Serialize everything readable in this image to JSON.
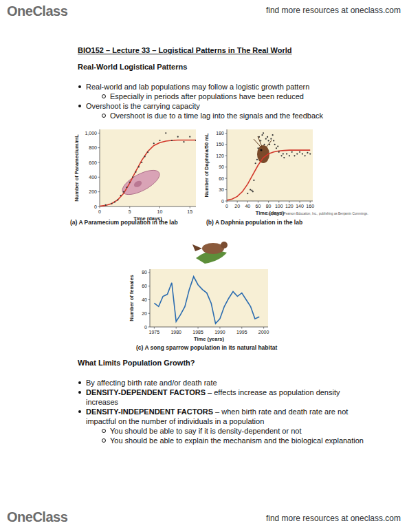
{
  "header": {
    "logo": "OneClass",
    "link": "find more resources at oneclass.com"
  },
  "title": "BIO152 – Lecture 33 – Logistical Patterns in The Real World",
  "sections": [
    {
      "heading": "Real-World Logistical Patterns",
      "bullets": [
        {
          "text": "Real-world and lab populations may follow a logistic growth pattern",
          "sub": [
            "Especially in periods after populations have been reduced"
          ]
        },
        {
          "text": "Overshoot is the carrying capacity",
          "sub": [
            "Overshoot is due to a time lag into the signals and the feedback"
          ]
        }
      ]
    },
    {
      "heading": "What Limits Population Growth?",
      "bullets": [
        {
          "text": "By affecting birth rate and/or death rate"
        },
        {
          "term": "DENSITY-DEPENDENT FACTORS",
          "text": "– effects increase as population density increases"
        },
        {
          "term": "DENSITY-INDEPENDENT FACTORS",
          "text": "– when birth rate and death rate are not impactful on the number of individuals in a population",
          "sub": [
            "You should be able to say if it is density-dependent or not",
            "You should be able to explain the mechanism and the biological explanation"
          ]
        }
      ]
    }
  ],
  "chart_data": [
    {
      "type": "scatter",
      "title": "(a) A Paramecium population in the lab",
      "x_label": "Time (days)",
      "y_label": "Number of Paramecium/mL",
      "xlim": [
        0,
        16
      ],
      "ylim": [
        0,
        1050
      ],
      "xticks": [
        0,
        5,
        10,
        15
      ],
      "yticks": [
        0,
        200,
        400,
        600,
        800,
        {
          "value": 1000,
          "label": "1,000"
        }
      ],
      "grid": false,
      "series": [
        {
          "type": "line",
          "color": "#d2382b",
          "line_style": "solid",
          "x": [
            0,
            1,
            2,
            3,
            4,
            5,
            6,
            7,
            8,
            9,
            10,
            11,
            12,
            13,
            14,
            15,
            16
          ],
          "values": [
            5,
            15,
            40,
            90,
            180,
            320,
            480,
            630,
            750,
            830,
            870,
            890,
            900,
            905,
            905,
            905,
            905
          ]
        },
        {
          "type": "scatter",
          "color": "#333333",
          "marker": "circle",
          "x": [
            1,
            2,
            2.5,
            3,
            3.5,
            4,
            4.5,
            5,
            5.5,
            6,
            6.5,
            7,
            7.5,
            8,
            9,
            10,
            11,
            12,
            13,
            14,
            15,
            16
          ],
          "values": [
            20,
            40,
            60,
            90,
            150,
            200,
            260,
            330,
            400,
            470,
            540,
            600,
            680,
            740,
            860,
            900,
            1000,
            900,
            950,
            880,
            950,
            900
          ]
        }
      ]
    },
    {
      "type": "scatter",
      "title": "(b) A Daphnia population in the lab",
      "note": "Copyright © Pearson Education, Inc., publishing as Benjamin Cummings.",
      "x_label": "Time (days)",
      "y_label": "Number of Daphnia/50 mL",
      "xlim": [
        0,
        165
      ],
      "ylim": [
        0,
        190
      ],
      "xticks": [
        0,
        20,
        40,
        60,
        80,
        100,
        120,
        140,
        160
      ],
      "yticks": [
        0,
        30,
        60,
        90,
        120,
        150,
        180
      ],
      "grid": false,
      "series": [
        {
          "type": "line",
          "color": "#d2382b",
          "line_style": "solid",
          "x": [
            0,
            10,
            20,
            30,
            40,
            50,
            60,
            70,
            80,
            90,
            100,
            110,
            120,
            130,
            140,
            150,
            160
          ],
          "values": [
            2,
            5,
            12,
            25,
            45,
            70,
            95,
            115,
            125,
            130,
            133,
            134,
            135,
            135,
            135,
            135,
            135
          ]
        },
        {
          "type": "scatter",
          "color": "#333333",
          "marker": "circle",
          "x": [
            40,
            45,
            48,
            50,
            52,
            55,
            58,
            60,
            62,
            65,
            68,
            70,
            72,
            75,
            78,
            80,
            82,
            85,
            88,
            90,
            92,
            95,
            98,
            100,
            105,
            108,
            110,
            115,
            120,
            125,
            130,
            135,
            140,
            145,
            150,
            155,
            160
          ],
          "values": [
            20,
            30,
            28,
            25,
            55,
            100,
            110,
            140,
            170,
            160,
            175,
            180,
            150,
            165,
            170,
            160,
            150,
            165,
            175,
            160,
            150,
            140,
            145,
            130,
            120,
            125,
            115,
            125,
            120,
            130,
            120,
            125,
            130,
            125,
            120,
            128,
            125
          ]
        }
      ]
    },
    {
      "type": "line",
      "title": "(c) A song sparrow population in its natural habitat",
      "x_label": "Time (years)",
      "y_label": "Number of females",
      "xlim": [
        1974,
        2001
      ],
      "ylim": [
        0,
        85
      ],
      "xticks": [
        1975,
        1980,
        1985,
        1990,
        1995,
        2000
      ],
      "yticks": [
        0,
        20,
        40,
        60,
        80
      ],
      "grid": false,
      "x": [
        1975,
        1976,
        1977,
        1978,
        1979,
        1980,
        1981,
        1982,
        1983,
        1984,
        1985,
        1986,
        1987,
        1988,
        1989,
        1990,
        1991,
        1992,
        1993,
        1994,
        1995,
        1996,
        1997,
        1998,
        1999
      ],
      "series": [
        {
          "color": "#2b6cb0",
          "line_style": "solid",
          "values": [
            35,
            30,
            45,
            48,
            65,
            8,
            18,
            30,
            55,
            74,
            62,
            55,
            50,
            35,
            5,
            12,
            30,
            42,
            52,
            45,
            50,
            40,
            30,
            12,
            15
          ]
        }
      ]
    }
  ],
  "footer": {
    "logo": "OneClass",
    "link": "find more resources at oneclass.com"
  }
}
